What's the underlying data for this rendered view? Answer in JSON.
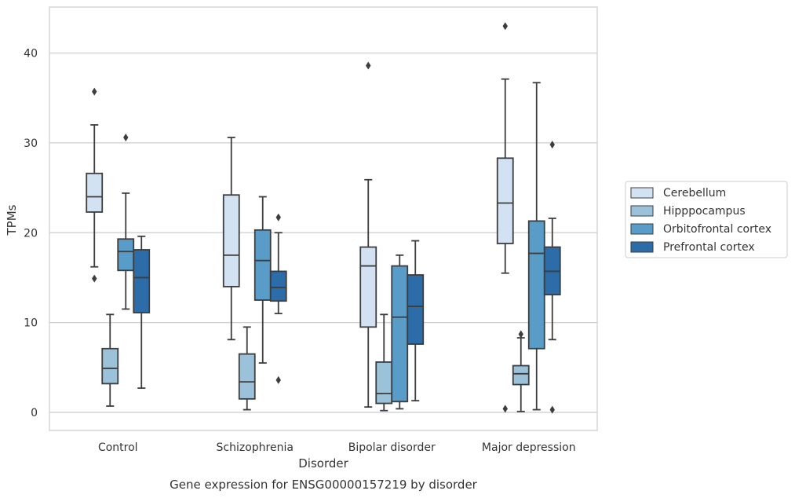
{
  "chart_data": {
    "type": "boxplot",
    "title": "",
    "caption": "Gene expression for ENSG00000157219 by disorder",
    "xlabel": "Disorder",
    "ylabel": "TPMs",
    "ylim": [
      -2,
      45
    ],
    "yticks": [
      0,
      10,
      20,
      30,
      40
    ],
    "grid": "horizontal",
    "legend_position": "right",
    "categories": [
      "Control",
      "Schizophrenia",
      "Bipolar disorder",
      "Major depression"
    ],
    "series": [
      {
        "name": "Cerebellum",
        "color": "#d3e2f2",
        "boxes": [
          {
            "min": 16.2,
            "q1": 22.3,
            "median": 24.0,
            "q3": 26.6,
            "max": 32.0,
            "outliers": [
              35.7,
              14.9
            ]
          },
          {
            "min": 8.1,
            "q1": 14.0,
            "median": 17.5,
            "q3": 24.2,
            "max": 30.6,
            "outliers": []
          },
          {
            "min": 0.6,
            "q1": 9.5,
            "median": 16.3,
            "q3": 18.4,
            "max": 25.9,
            "outliers": [
              38.6
            ]
          },
          {
            "min": 15.5,
            "q1": 18.8,
            "median": 23.3,
            "q3": 28.3,
            "max": 37.1,
            "outliers": [
              43.0,
              0.4
            ]
          }
        ]
      },
      {
        "name": "Hipppocampus",
        "color": "#9cc2da",
        "boxes": [
          {
            "min": 0.7,
            "q1": 3.2,
            "median": 4.9,
            "q3": 7.1,
            "max": 10.9,
            "outliers": []
          },
          {
            "min": 0.3,
            "q1": 1.5,
            "median": 3.4,
            "q3": 6.5,
            "max": 9.5,
            "outliers": []
          },
          {
            "min": 0.2,
            "q1": 1.0,
            "median": 2.1,
            "q3": 5.6,
            "max": 10.9,
            "outliers": []
          },
          {
            "min": 0.1,
            "q1": 3.1,
            "median": 4.3,
            "q3": 5.2,
            "max": 8.3,
            "outliers": [
              8.7
            ]
          }
        ]
      },
      {
        "name": "Orbitofrontal cortex",
        "color": "#5a9cc8",
        "boxes": [
          {
            "min": 11.5,
            "q1": 15.8,
            "median": 17.9,
            "q3": 19.3,
            "max": 24.4,
            "outliers": [
              30.6
            ]
          },
          {
            "min": 5.5,
            "q1": 12.5,
            "median": 16.9,
            "q3": 20.3,
            "max": 24.0,
            "outliers": []
          },
          {
            "min": 0.4,
            "q1": 1.2,
            "median": 10.6,
            "q3": 16.3,
            "max": 17.5,
            "outliers": []
          },
          {
            "min": 0.3,
            "q1": 7.1,
            "median": 17.7,
            "q3": 21.3,
            "max": 36.7,
            "outliers": []
          }
        ]
      },
      {
        "name": "Prefrontal cortex",
        "color": "#2c6ca8",
        "boxes": [
          {
            "min": 2.7,
            "q1": 11.1,
            "median": 15.0,
            "q3": 18.1,
            "max": 19.6,
            "outliers": []
          },
          {
            "min": 11.0,
            "q1": 12.4,
            "median": 13.9,
            "q3": 15.7,
            "max": 20.0,
            "outliers": [
              21.7,
              3.6
            ]
          },
          {
            "min": 1.3,
            "q1": 7.6,
            "median": 11.8,
            "q3": 15.3,
            "max": 19.1,
            "outliers": []
          },
          {
            "min": 8.1,
            "q1": 13.1,
            "median": 15.7,
            "q3": 18.4,
            "max": 21.6,
            "outliers": [
              29.8,
              0.3
            ]
          }
        ]
      }
    ]
  }
}
